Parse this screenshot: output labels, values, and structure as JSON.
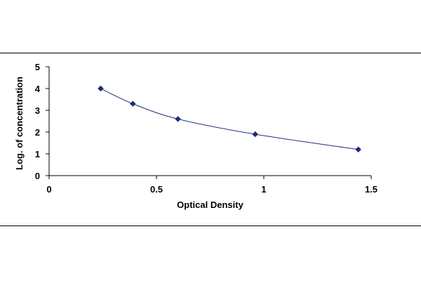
{
  "chart_data": {
    "type": "scatter",
    "title": "",
    "xlabel": "Optical Density",
    "ylabel": "Log. of concentration",
    "xlim": [
      0,
      1.5
    ],
    "ylim": [
      0,
      5
    ],
    "xticks": [
      "0",
      "0.5",
      "1",
      "1.5"
    ],
    "yticks": [
      "0",
      "1",
      "2",
      "3",
      "4",
      "5"
    ],
    "grid": false,
    "legend": "none",
    "marker_color": "#1f2a7a",
    "line_color": "#1f2a7a",
    "trendline": "smooth",
    "series": [
      {
        "x": [
          0.24,
          0.39,
          0.6,
          0.96,
          1.44
        ],
        "y": [
          4.0,
          3.3,
          2.6,
          1.9,
          1.2
        ]
      }
    ]
  }
}
